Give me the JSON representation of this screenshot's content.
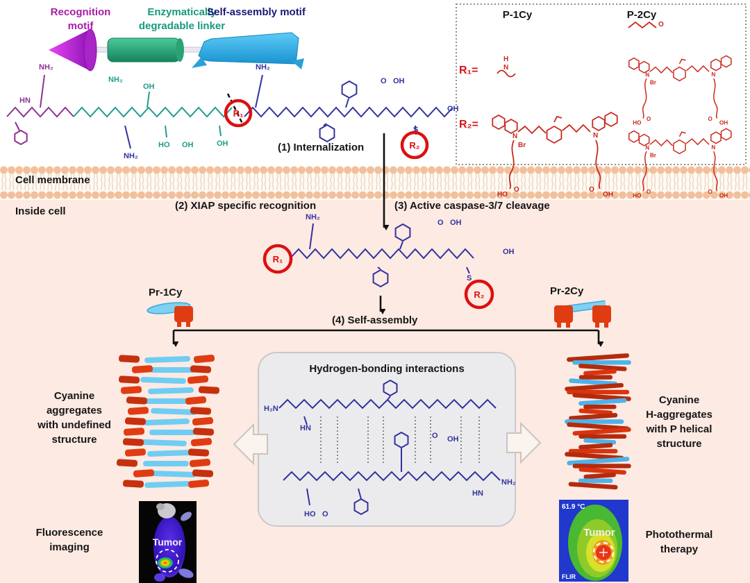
{
  "top_labels": {
    "recognition": "Recognition motif",
    "linker": "Enzymatically degradable linker",
    "assembly": "Self-assembly motif"
  },
  "inset": {
    "p1": "P-1Cy",
    "p2": "P-2Cy",
    "r1_eq": "R₁=",
    "r2_eq": "R₂="
  },
  "steps": {
    "s1": "(1) Internalization",
    "s2": "(2) XIAP specific recognition",
    "s3": "(3) Active caspase-3/7 cleavage",
    "s4": "(4) Self-assembly"
  },
  "cell": {
    "membrane": "Cell membrane",
    "inside": "Inside cell"
  },
  "probes": {
    "pr1": "Pr-1Cy",
    "pr2": "Pr-2Cy"
  },
  "r_circles": {
    "r1": "R₁",
    "r2": "R₂"
  },
  "hbond_title": "Hydrogen-bonding interactions",
  "outcome_left": {
    "l0": "Cyanine",
    "l1": "aggregates",
    "l2": "with undefined",
    "l3": "structure"
  },
  "outcome_right": {
    "l0": "Cyanine",
    "l1": "H-aggregates",
    "l2": "with P helical",
    "l3": "structure"
  },
  "imaging": {
    "fluor0": "Fluorescence",
    "fluor1": "imaging",
    "photo0": "Photothermal",
    "photo1": "therapy",
    "tumor_left": "Tumor",
    "tumor_right": "Tumor",
    "temp": "61.9 °C",
    "flir": "FLIR"
  },
  "atoms": {
    "nh2": "NH₂",
    "h2n": "H₂N",
    "oh": "OH",
    "ho": "HO",
    "o": "O",
    "s": "S",
    "n": "N",
    "h": "H",
    "hn": "HN",
    "br": "Br"
  },
  "colors": {
    "recognition_magenta": "#a81ea5",
    "linker_teal": "#16997e",
    "assembly_navy": "#1d1678",
    "peptide_blue": "#32329e",
    "dye_red": "#c8281c",
    "circle_red": "#dd1010",
    "rod_lightblue": "#6fcdf4",
    "aggregate_red": "#d8350f",
    "membrane_head": "#f1c09c",
    "inside_bg": "#fceae3",
    "hbond_box": "#ebebee"
  }
}
